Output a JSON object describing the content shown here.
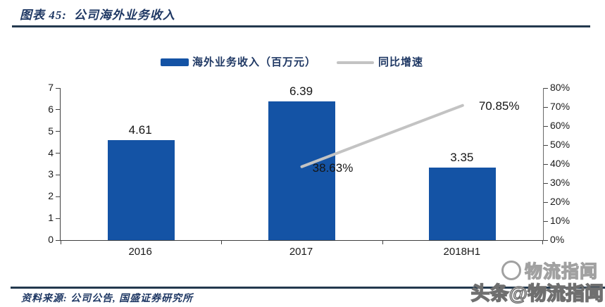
{
  "header": {
    "title_prefix": "图表 45:",
    "title_text": "公司海外业务收入"
  },
  "legend": {
    "bar_label": "海外业务收入（百万元）",
    "line_label": "同比增速"
  },
  "footer": {
    "source": "资料来源: 公司公告, 国盛证券研究所"
  },
  "watermark": {
    "ghost": "物流指闻",
    "main": "头条@物流指闻"
  },
  "colors": {
    "bar": "#1453a5",
    "line": "#c3c3c3",
    "accent_text": "#1f3864",
    "divider": "#23394e"
  },
  "chart_data": {
    "type": "bar",
    "title": "公司海外业务收入",
    "categories": [
      "2016",
      "2017",
      "2018H1"
    ],
    "series": [
      {
        "name": "海外业务收入（百万元）",
        "type": "bar",
        "axis": "left",
        "values": [
          4.61,
          6.39,
          3.35
        ],
        "labels": [
          "4.61",
          "6.39",
          "3.35"
        ],
        "color": "#1453a5"
      },
      {
        "name": "同比增速",
        "type": "line",
        "axis": "right",
        "values": [
          null,
          38.63,
          70.85
        ],
        "labels": [
          null,
          "38.63%",
          "70.85%"
        ],
        "color": "#c3c3c3"
      }
    ],
    "left_axis": {
      "min": 0,
      "max": 7,
      "ticks": [
        "0",
        "1",
        "2",
        "3",
        "4",
        "5",
        "6",
        "7"
      ]
    },
    "right_axis": {
      "min": 0,
      "max": 80,
      "ticks": [
        "0%",
        "10%",
        "20%",
        "30%",
        "40%",
        "50%",
        "60%",
        "70%",
        "80%"
      ]
    },
    "legend_position": "top",
    "grid": false
  }
}
